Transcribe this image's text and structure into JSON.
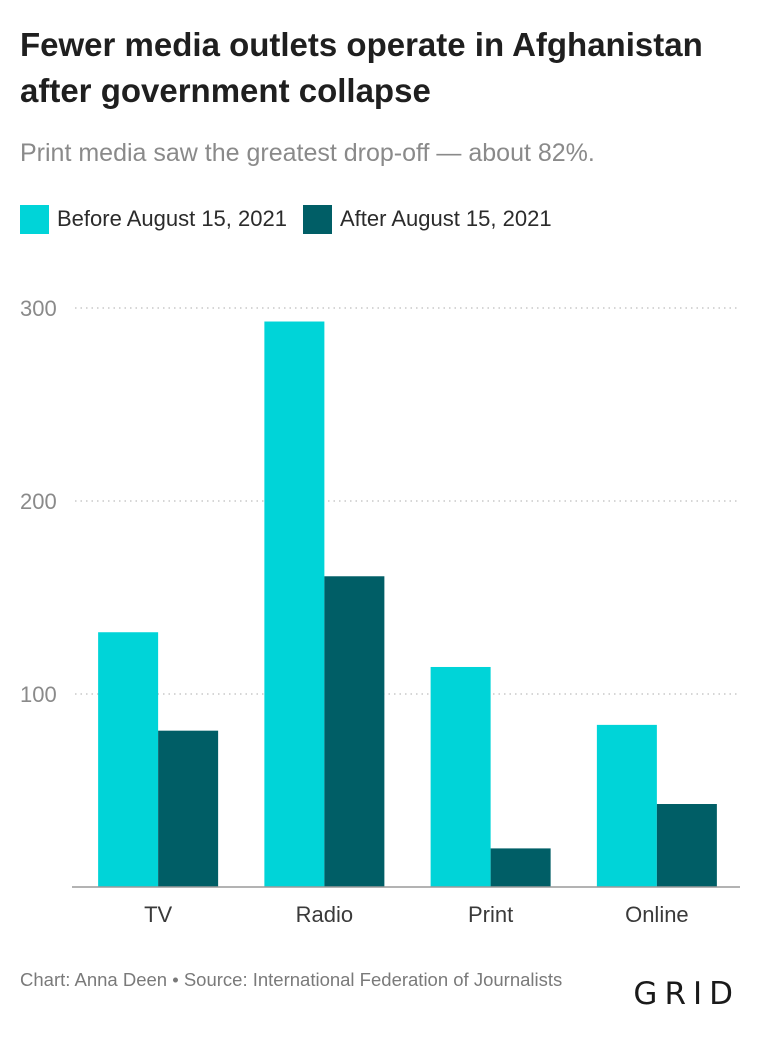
{
  "title": "Fewer media outlets operate in Afghanistan after government collapse",
  "subtitle": "Print media saw the greatest drop-off — about 82%.",
  "footer": "Chart: Anna Deen • Source: International Federation of Journalists",
  "logo": "GRID",
  "colors": {
    "before": "#00d4d8",
    "after": "#005e66",
    "grid": "#c8c8c8",
    "axis": "#9a9a9a"
  },
  "chart_data": {
    "type": "bar",
    "title": "Fewer media outlets operate in Afghanistan after government collapse",
    "subtitle": "Print media saw the greatest drop-off — about 82%.",
    "categories": [
      "TV",
      "Radio",
      "Print",
      "Online"
    ],
    "series": [
      {
        "name": "Before August 15, 2021",
        "values": [
          132,
          293,
          114,
          84
        ]
      },
      {
        "name": "After August 15, 2021",
        "values": [
          81,
          161,
          20,
          43
        ]
      }
    ],
    "xlabel": "",
    "ylabel": "",
    "ylim": [
      0,
      300
    ],
    "yticks": [
      100,
      200,
      300
    ],
    "ytick_labels": [
      "100",
      "200",
      "300"
    ],
    "grid": true,
    "legend": "top-left"
  }
}
